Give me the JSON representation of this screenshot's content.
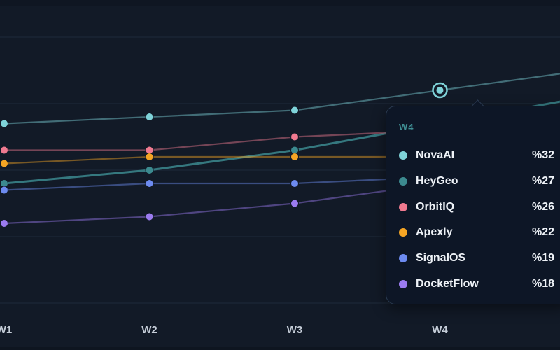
{
  "chart_data": {
    "type": "line",
    "categories": [
      "W1",
      "W2",
      "W3",
      "W4"
    ],
    "series": [
      {
        "name": "NovaAI",
        "color": "#7fd3d9",
        "values": [
          27,
          28,
          29,
          32
        ]
      },
      {
        "name": "HeyGeo",
        "color": "#3c8a8f",
        "values": [
          18,
          20,
          23,
          27
        ]
      },
      {
        "name": "OrbitIQ",
        "color": "#f07a90",
        "values": [
          23,
          23,
          25,
          26
        ]
      },
      {
        "name": "Apexly",
        "color": "#f5a524",
        "values": [
          21,
          22,
          22,
          22
        ]
      },
      {
        "name": "SignalOS",
        "color": "#6d8bf0",
        "values": [
          17,
          18,
          18,
          19
        ]
      },
      {
        "name": "DocketFlow",
        "color": "#9b7bf0",
        "values": [
          12,
          13,
          15,
          18
        ]
      }
    ],
    "ylim": [
      0,
      40
    ],
    "grid": true,
    "highlighted_category": "W4",
    "highlighted_series": "NovaAI"
  },
  "tooltip": {
    "title": "W4",
    "rows": [
      {
        "name": "NovaAI",
        "value": "%32",
        "color": "#7fd3d9"
      },
      {
        "name": "HeyGeo",
        "value": "%27",
        "color": "#3c8a8f"
      },
      {
        "name": "OrbitIQ",
        "value": "%26",
        "color": "#f07a90"
      },
      {
        "name": "Apexly",
        "value": "%22",
        "color": "#f5a524"
      },
      {
        "name": "SignalOS",
        "value": "%19",
        "color": "#6d8bf0"
      },
      {
        "name": "DocketFlow",
        "value": "%18",
        "color": "#9b7bf0"
      }
    ]
  }
}
